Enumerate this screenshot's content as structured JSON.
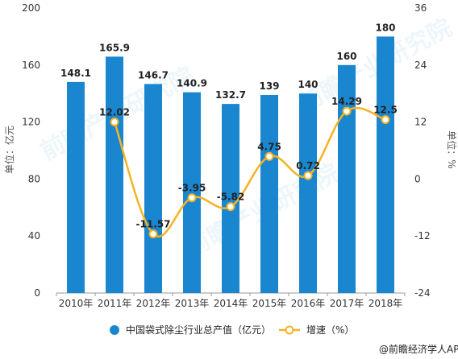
{
  "chart_data": {
    "type": "bar",
    "categories": [
      "2010年",
      "2011年",
      "2012年",
      "2013年",
      "2014年",
      "2015年",
      "2016年",
      "2017年",
      "2018年"
    ],
    "series": [
      {
        "name": "中国袋式除尘行业总产值（亿元）",
        "type": "bar",
        "axis": "left",
        "values": [
          148.1,
          165.9,
          146.7,
          140.9,
          132.7,
          139,
          140,
          160,
          180
        ],
        "labels": [
          "148.1",
          "165.9",
          "146.7",
          "140.9",
          "132.7",
          "139",
          "140",
          "160",
          "180"
        ]
      },
      {
        "name": "增速（%）",
        "type": "line",
        "axis": "right",
        "values": [
          null,
          12.02,
          -11.57,
          -3.95,
          -5.82,
          4.75,
          0.72,
          14.29,
          12.5
        ],
        "labels": [
          "",
          "12.02",
          "-11.57",
          "-3.95",
          "-5.82",
          "4.75",
          "0.72",
          "14.29",
          "12.5"
        ]
      }
    ],
    "ylabel": "单位：亿元",
    "y2label": "单位：%",
    "ylim": [
      0,
      200
    ],
    "y2lim": [
      -24,
      36
    ],
    "yticks": [
      0,
      40,
      80,
      120,
      160,
      200
    ],
    "y2ticks": [
      -24,
      -12,
      0,
      12,
      24,
      36
    ],
    "grid": false,
    "legend": "bottom",
    "colors": {
      "bar": "#1a86d0",
      "line": "#f5b324",
      "marker_fill": "#ffffff"
    }
  },
  "source": "@前瞻经济学人APP",
  "watermark": "前瞻产业研究院"
}
